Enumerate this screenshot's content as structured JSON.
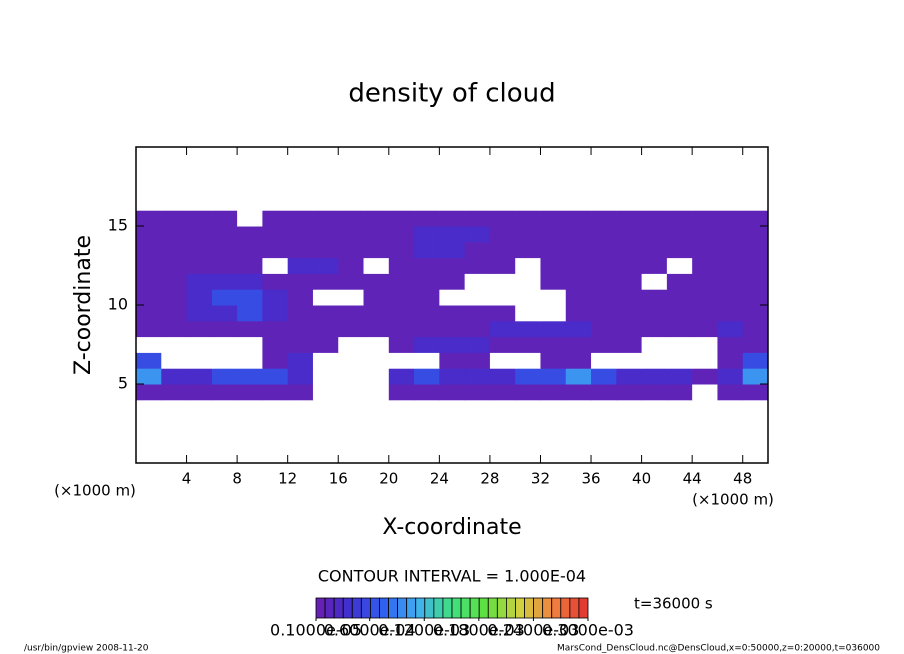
{
  "chart_data": {
    "type": "shaded",
    "title": "density of cloud",
    "xlabel": "X-coordinate",
    "ylabel": "Z-coordinate",
    "x_unit": "(×1000 m)",
    "y_unit": "(×1000 m)",
    "contour_interval": "CONTOUR INTERVAL = 1.000E-04",
    "time_label": "t=36000 s",
    "footer_left": "/usr/bin/gpview  2008-11-20",
    "footer_right": "MarsCond_DensCloud.nc@DensCloud,x=0:50000,z=0:20000,t=036000",
    "xlim": [
      0,
      50
    ],
    "ylim": [
      0,
      20
    ],
    "xticks": [
      4,
      8,
      12,
      16,
      20,
      24,
      28,
      32,
      36,
      40,
      44,
      48
    ],
    "yticks": [
      5,
      10,
      15
    ],
    "colorbar_lim": [
      1e-06,
      0.0003
    ],
    "colorbar_ticks": [
      {
        "value": 1e-06,
        "label": "0.1000e-05"
      },
      {
        "value": 6e-05,
        "label": "0.6000e-04"
      },
      {
        "value": 0.00012,
        "label": "0.1200e-03"
      },
      {
        "value": 0.00018,
        "label": "0.1800e-03"
      },
      {
        "value": 0.00024,
        "label": "0.2400e-03"
      },
      {
        "value": 0.0003,
        "label": "0.3000e-03"
      }
    ],
    "colormap": [
      "#6a1fb0",
      "#4030d0",
      "#3060f0",
      "#40b0f0",
      "#40e080",
      "#60e040",
      "#d0d040",
      "#f08040",
      "#e03030"
    ],
    "field": [
      [
        0,
        0,
        0,
        0,
        0,
        0,
        0,
        0,
        0,
        0,
        0,
        0,
        0,
        0,
        0,
        0,
        0,
        0,
        0,
        0,
        0,
        0,
        0,
        0,
        0
      ],
      [
        0,
        0,
        0,
        0,
        0,
        0,
        0,
        0,
        0,
        0,
        0,
        0,
        0,
        0,
        0,
        0,
        0,
        0,
        0,
        0,
        0,
        0,
        0,
        0,
        0
      ],
      [
        0,
        0,
        0,
        0,
        0,
        0,
        0,
        0,
        0,
        0,
        0,
        0,
        0,
        0,
        0,
        0,
        0,
        0,
        0,
        0,
        0,
        0,
        0,
        0,
        0
      ],
      [
        0,
        0,
        0,
        0,
        0,
        0,
        0,
        0,
        0,
        0,
        0,
        0,
        0,
        0,
        0,
        0,
        0,
        0,
        0,
        0,
        0,
        0,
        0,
        0,
        0
      ],
      [
        1e-05,
        1e-05,
        1e-05,
        1e-05,
        1e-05,
        1e-05,
        1e-05,
        0,
        0,
        0,
        1e-05,
        1e-05,
        1e-05,
        1e-05,
        1e-05,
        1e-05,
        1e-05,
        1e-05,
        1e-05,
        1e-05,
        1e-05,
        1e-05,
        0,
        1e-05,
        1e-05
      ],
      [
        0.0001,
        3e-05,
        3e-05,
        6e-05,
        6e-05,
        6e-05,
        3e-05,
        0,
        0,
        0,
        3e-05,
        6e-05,
        3e-05,
        3e-05,
        3e-05,
        6e-05,
        6e-05,
        0.0001,
        6e-05,
        3e-05,
        3e-05,
        3e-05,
        1e-05,
        3e-05,
        0.0001
      ],
      [
        6e-05,
        0,
        0,
        0,
        0,
        1e-05,
        3e-05,
        0,
        0,
        0,
        0,
        0,
        1e-05,
        1e-05,
        0,
        0,
        1e-05,
        1e-05,
        0,
        0,
        0,
        0,
        0,
        1e-05,
        6e-05
      ],
      [
        0,
        0,
        0,
        0,
        0,
        1e-05,
        1e-05,
        1e-05,
        0,
        0,
        1e-05,
        3e-05,
        3e-05,
        3e-05,
        1e-05,
        1e-05,
        1e-05,
        1e-05,
        1e-05,
        1e-05,
        0,
        0,
        0,
        1e-05,
        1e-05
      ],
      [
        1e-05,
        1e-05,
        1e-05,
        1e-05,
        1e-05,
        1e-05,
        1e-05,
        1e-05,
        1e-05,
        1e-05,
        1e-05,
        1e-05,
        1e-05,
        1e-05,
        3e-05,
        3e-05,
        3e-05,
        3e-05,
        1e-05,
        1e-05,
        1e-05,
        1e-05,
        1e-05,
        3e-05,
        1e-05
      ],
      [
        1e-05,
        1e-05,
        3e-05,
        3e-05,
        6e-05,
        3e-05,
        1e-05,
        1e-05,
        1e-05,
        1e-05,
        1e-05,
        1e-05,
        1e-05,
        1e-05,
        1e-05,
        0,
        0,
        1e-05,
        1e-05,
        1e-05,
        1e-05,
        1e-05,
        1e-05,
        1e-05,
        1e-05
      ],
      [
        1e-05,
        1e-05,
        3e-05,
        6e-05,
        6e-05,
        3e-05,
        1e-05,
        0,
        0,
        1e-05,
        1e-05,
        1e-05,
        0,
        0,
        0,
        0,
        0,
        1e-05,
        1e-05,
        1e-05,
        1e-05,
        1e-05,
        1e-05,
        1e-05,
        1e-05
      ],
      [
        1e-05,
        1e-05,
        3e-05,
        3e-05,
        3e-05,
        1e-05,
        1e-05,
        1e-05,
        1e-05,
        1e-05,
        1e-05,
        1e-05,
        1e-05,
        0,
        0,
        0,
        1e-05,
        1e-05,
        1e-05,
        1e-05,
        0,
        1e-05,
        1e-05,
        1e-05,
        1e-05
      ],
      [
        1e-05,
        1e-05,
        1e-05,
        1e-05,
        1e-05,
        0,
        3e-05,
        3e-05,
        1e-05,
        0,
        1e-05,
        1e-05,
        1e-05,
        1e-05,
        1e-05,
        0,
        1e-05,
        1e-05,
        1e-05,
        1e-05,
        1e-05,
        0,
        1e-05,
        1e-05,
        1e-05
      ],
      [
        1e-05,
        1e-05,
        1e-05,
        1e-05,
        1e-05,
        1e-05,
        1e-05,
        1e-05,
        1e-05,
        1e-05,
        1e-05,
        3e-05,
        3e-05,
        1e-05,
        1e-05,
        1e-05,
        1e-05,
        1e-05,
        1e-05,
        1e-05,
        1e-05,
        1e-05,
        1e-05,
        1e-05,
        1e-05
      ],
      [
        1e-05,
        1e-05,
        1e-05,
        1e-05,
        1e-05,
        1e-05,
        1e-05,
        1e-05,
        1e-05,
        1e-05,
        1e-05,
        3e-05,
        3e-05,
        3e-05,
        1e-05,
        1e-05,
        1e-05,
        1e-05,
        1e-05,
        1e-05,
        1e-05,
        1e-05,
        1e-05,
        1e-05,
        1e-05
      ],
      [
        1e-05,
        1e-05,
        1e-05,
        1e-05,
        0,
        1e-05,
        1e-05,
        1e-05,
        1e-05,
        1e-05,
        1e-05,
        1e-05,
        1e-05,
        1e-05,
        1e-05,
        1e-05,
        1e-05,
        1e-05,
        1e-05,
        1e-05,
        1e-05,
        1e-05,
        1e-05,
        1e-05,
        1e-05
      ],
      [
        0,
        0,
        0,
        0,
        0,
        0,
        0,
        0,
        0,
        0,
        0,
        0,
        0,
        0,
        0,
        0,
        0,
        0,
        0,
        0,
        0,
        0,
        0,
        0,
        0
      ],
      [
        0,
        0,
        0,
        0,
        0,
        0,
        0,
        0,
        0,
        0,
        0,
        0,
        0,
        0,
        0,
        0,
        0,
        0,
        0,
        0,
        0,
        0,
        0,
        0,
        0
      ],
      [
        0,
        0,
        0,
        0,
        0,
        0,
        0,
        0,
        0,
        0,
        0,
        0,
        0,
        0,
        0,
        0,
        0,
        0,
        0,
        0,
        0,
        0,
        0,
        0,
        0
      ],
      [
        0,
        0,
        0,
        0,
        0,
        0,
        0,
        0,
        0,
        0,
        0,
        0,
        0,
        0,
        0,
        0,
        0,
        0,
        0,
        0,
        0,
        0,
        0,
        0,
        0
      ]
    ]
  }
}
